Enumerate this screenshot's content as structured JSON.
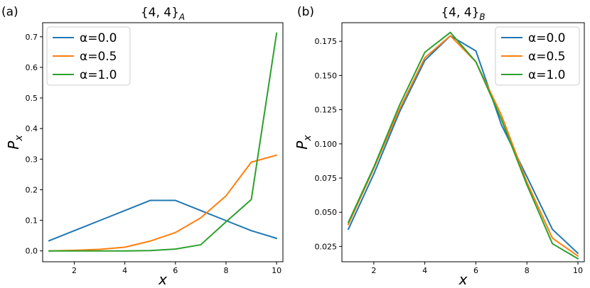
{
  "chart_data": [
    {
      "type": "line",
      "panel_label": "(a)",
      "title": "{4, 4}",
      "title_sub": "A",
      "xlabel": "x",
      "ylabel": "P",
      "ylabel_sub": "x",
      "xlim": [
        0.75,
        10.25
      ],
      "ylim": [
        -0.0355,
        0.746
      ],
      "x": [
        1,
        2,
        3,
        4,
        5,
        6,
        7,
        8,
        9,
        10
      ],
      "xticks": [
        2,
        4,
        6,
        8,
        10
      ],
      "xtick_labels": [
        "2",
        "4",
        "6",
        "8",
        "10"
      ],
      "yticks": [
        0.0,
        0.1,
        0.2,
        0.3,
        0.4,
        0.5,
        0.6,
        0.7
      ],
      "ytick_labels": [
        "0.0",
        "0.1",
        "0.2",
        "0.3",
        "0.4",
        "0.5",
        "0.6",
        "0.7"
      ],
      "legend_position": "top-left",
      "series": [
        {
          "name": "α=0.0",
          "color": "#1f77b4",
          "values": [
            0.033,
            0.066,
            0.099,
            0.132,
            0.165,
            0.165,
            0.132,
            0.099,
            0.066,
            0.041
          ]
        },
        {
          "name": "α=0.5",
          "color": "#ff7f0e",
          "values": [
            0.0,
            0.002,
            0.005,
            0.012,
            0.032,
            0.06,
            0.108,
            0.18,
            0.29,
            0.313
          ]
        },
        {
          "name": "α=1.0",
          "color": "#2ca02c",
          "values": [
            0.0,
            0.0,
            0.0,
            0.0,
            0.001,
            0.006,
            0.02,
            0.095,
            0.168,
            0.712
          ]
        }
      ]
    },
    {
      "type": "line",
      "panel_label": "(b)",
      "title": "{4, 4}",
      "title_sub": "B",
      "xlabel": "x",
      "ylabel": "P",
      "ylabel_sub": "x",
      "xlim": [
        0.75,
        10.25
      ],
      "ylim": [
        0.0138,
        0.1886
      ],
      "x": [
        1,
        2,
        3,
        4,
        5,
        6,
        7,
        8,
        9,
        10
      ],
      "xticks": [
        2,
        4,
        6,
        8,
        10
      ],
      "xtick_labels": [
        "2",
        "4",
        "6",
        "8",
        "10"
      ],
      "yticks": [
        0.025,
        0.05,
        0.075,
        0.1,
        0.125,
        0.15,
        0.175
      ],
      "ytick_labels": [
        "0.025",
        "0.050",
        "0.075",
        "0.100",
        "0.125",
        "0.150",
        "0.175"
      ],
      "legend_position": "top-right",
      "series": [
        {
          "name": "α=0.0",
          "color": "#1f77b4",
          "values": [
            0.0375,
            0.078,
            0.123,
            0.161,
            0.179,
            0.168,
            0.114,
            0.076,
            0.0375,
            0.02
          ]
        },
        {
          "name": "α=0.5",
          "color": "#ff7f0e",
          "values": [
            0.041,
            0.082,
            0.125,
            0.163,
            0.179,
            0.16,
            0.121,
            0.072,
            0.031,
            0.018
          ]
        },
        {
          "name": "α=1.0",
          "color": "#2ca02c",
          "values": [
            0.0425,
            0.083,
            0.128,
            0.167,
            0.1815,
            0.16,
            0.118,
            0.07,
            0.027,
            0.016
          ]
        }
      ]
    }
  ]
}
